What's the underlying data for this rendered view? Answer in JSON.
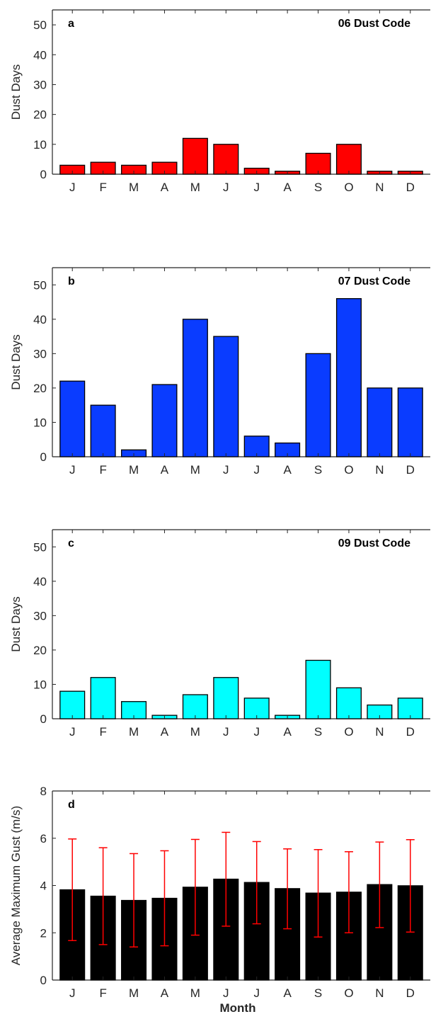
{
  "chart_data": [
    {
      "type": "bar",
      "panel_label": "a",
      "title": "06 Dust Code",
      "ylabel": "Dust Days",
      "xlabel": "",
      "categories": [
        "J",
        "F",
        "M",
        "A",
        "M",
        "J",
        "J",
        "A",
        "S",
        "O",
        "N",
        "D"
      ],
      "values": [
        3,
        4,
        3,
        4,
        12,
        10,
        2,
        1,
        7,
        10,
        1,
        1
      ],
      "ylim": [
        0,
        55
      ],
      "yticks": [
        0,
        10,
        20,
        30,
        40,
        50
      ],
      "color": "#ff0000",
      "grid": false
    },
    {
      "type": "bar",
      "panel_label": "b",
      "title": "07 Dust Code",
      "ylabel": "Dust Days",
      "xlabel": "",
      "categories": [
        "J",
        "F",
        "M",
        "A",
        "M",
        "J",
        "J",
        "A",
        "S",
        "O",
        "N",
        "D"
      ],
      "values": [
        22,
        15,
        2,
        21,
        40,
        35,
        6,
        4,
        30,
        46,
        20,
        20
      ],
      "ylim": [
        0,
        55
      ],
      "yticks": [
        0,
        10,
        20,
        30,
        40,
        50
      ],
      "color": "#0a3cff",
      "grid": false
    },
    {
      "type": "bar",
      "panel_label": "c",
      "title": "09 Dust Code",
      "ylabel": "Dust Days",
      "xlabel": "",
      "categories": [
        "J",
        "F",
        "M",
        "A",
        "M",
        "J",
        "J",
        "A",
        "S",
        "O",
        "N",
        "D"
      ],
      "values": [
        8,
        12,
        5,
        1,
        7,
        12,
        6,
        1,
        17,
        9,
        4,
        6
      ],
      "ylim": [
        0,
        55
      ],
      "yticks": [
        0,
        10,
        20,
        30,
        40,
        50
      ],
      "color": "#00ffff",
      "grid": false
    },
    {
      "type": "bar",
      "panel_label": "d",
      "title": "",
      "ylabel": "Average Maximum Gust (m/s)",
      "xlabel": "Month",
      "categories": [
        "J",
        "F",
        "M",
        "A",
        "M",
        "J",
        "J",
        "A",
        "S",
        "O",
        "N",
        "D"
      ],
      "values": [
        3.82,
        3.55,
        3.37,
        3.46,
        3.93,
        4.27,
        4.13,
        3.87,
        3.68,
        3.72,
        4.04,
        3.99
      ],
      "error_low": [
        1.67,
        1.5,
        1.4,
        1.45,
        1.9,
        2.28,
        2.38,
        2.17,
        1.82,
        2.0,
        2.22,
        2.03
      ],
      "error_high": [
        5.97,
        5.6,
        5.35,
        5.47,
        5.95,
        6.25,
        5.86,
        5.55,
        5.52,
        5.43,
        5.84,
        5.94
      ],
      "ylim": [
        0,
        8
      ],
      "yticks": [
        0,
        2,
        4,
        6,
        8
      ],
      "color": "#000000",
      "error_color": "#ff0000",
      "grid": false
    }
  ]
}
